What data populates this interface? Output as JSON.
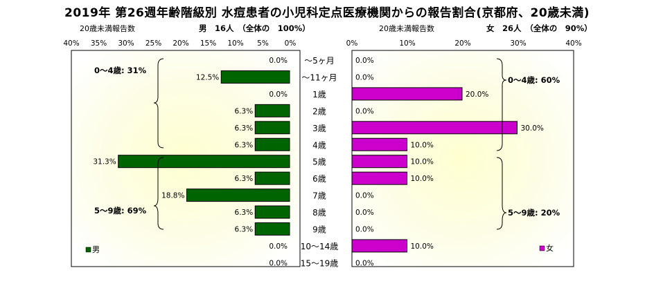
{
  "title": "2019年 第26週年齢階級別 水痘患者の小児科定点医療機関からの報告割合(京都府、20歳未満)",
  "age_groups": [
    "～5ヶ月",
    "～11ヶ月",
    "1歳",
    "2歳",
    "3歳",
    "4歳",
    "5歳",
    "6歳",
    "7歳",
    "8歳",
    "9歳",
    "10～14歳",
    "15～19歳"
  ],
  "male": {
    "header_label": "20歳未満報告数",
    "header_value": "男　16人　（全体の　100%）",
    "legend": "男",
    "color": "#006400",
    "axis_ticks": [
      "40%",
      "35%",
      "30%",
      "25%",
      "20%",
      "15%",
      "10%",
      "5%",
      "0%"
    ],
    "bracket_0_4": "0～4歳: 31%",
    "bracket_5_9": "5～9歳: 69%"
  },
  "female": {
    "header_label": "20歳未満報告数",
    "header_value": "女　26人　（全体の　90%）",
    "legend": "女",
    "color": "#cc00cc",
    "axis_ticks": [
      "0%",
      "10%",
      "20%",
      "30%",
      "40%"
    ],
    "bracket_0_4": "0～4歳: 60%",
    "bracket_5_9": "5～9歳: 20%"
  },
  "chart_data": [
    {
      "type": "bar",
      "categories": [
        "～5ヶ月",
        "～11ヶ月",
        "1歳",
        "2歳",
        "3歳",
        "4歳",
        "5歳",
        "6歳",
        "7歳",
        "8歳",
        "9歳",
        "10～14歳",
        "15～19歳"
      ],
      "values": [
        0.0,
        12.5,
        0.0,
        6.3,
        6.3,
        6.3,
        31.3,
        6.3,
        18.8,
        6.3,
        6.3,
        0.0,
        0.0
      ],
      "data_labels": [
        "0.0%",
        "12.5%",
        "0.0%",
        "6.3%",
        "6.3%",
        "6.3%",
        "31.3%",
        "6.3%",
        "18.8%",
        "6.3%",
        "6.3%",
        "0.0%",
        "0.0%"
      ],
      "xlim": [
        0,
        40
      ],
      "orientation": "horizontal-reversed",
      "legend": "bottom-left"
    },
    {
      "type": "bar",
      "categories": [
        "～5ヶ月",
        "～11ヶ月",
        "1歳",
        "2歳",
        "3歳",
        "4歳",
        "5歳",
        "6歳",
        "7歳",
        "8歳",
        "9歳",
        "10～14歳",
        "15～19歳"
      ],
      "values": [
        0.0,
        0.0,
        20.0,
        0.0,
        30.0,
        10.0,
        10.0,
        10.0,
        0.0,
        0.0,
        0.0,
        10.0,
        0.0
      ],
      "data_labels": [
        "0.0%",
        "0.0%",
        "20.0%",
        "0.0%",
        "30.0%",
        "10.0%",
        "10.0%",
        "10.0%",
        "0.0%",
        "0.0%",
        "0.0%",
        "10.0%",
        "0.0%"
      ],
      "xlim": [
        0,
        40
      ],
      "orientation": "horizontal",
      "legend": "bottom-right"
    }
  ]
}
